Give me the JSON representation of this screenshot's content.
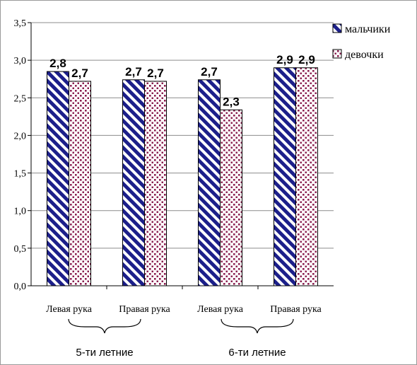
{
  "chart_data": {
    "type": "bar",
    "categories": [
      "Левая рука",
      "Правая рука",
      "Левая рука",
      "Правая рука"
    ],
    "series": [
      {
        "name": "мальчики",
        "values": [
          2.85,
          2.74,
          2.74,
          2.9
        ],
        "labels": [
          "2,8",
          "2,7",
          "2,7",
          "2,9"
        ],
        "pattern": "diagonal-stripes",
        "color": "#1c1f8a"
      },
      {
        "name": "девочки",
        "values": [
          2.72,
          2.72,
          2.34,
          2.9
        ],
        "labels": [
          "2,7",
          "2,7",
          "2,3",
          "2,9"
        ],
        "pattern": "dots",
        "color": "#8b2050"
      }
    ],
    "ylim": [
      0,
      3.5
    ],
    "yticks": [
      "0,0",
      "0,5",
      "1,0",
      "1,5",
      "2,0",
      "2,5",
      "3,0",
      "3,5"
    ],
    "ytick_values": [
      0,
      0.5,
      1.0,
      1.5,
      2.0,
      2.5,
      3.0,
      3.5
    ],
    "grid": true,
    "legend_position": "top-right",
    "groups": [
      "5-ти летние",
      "6-ти летние"
    ]
  }
}
